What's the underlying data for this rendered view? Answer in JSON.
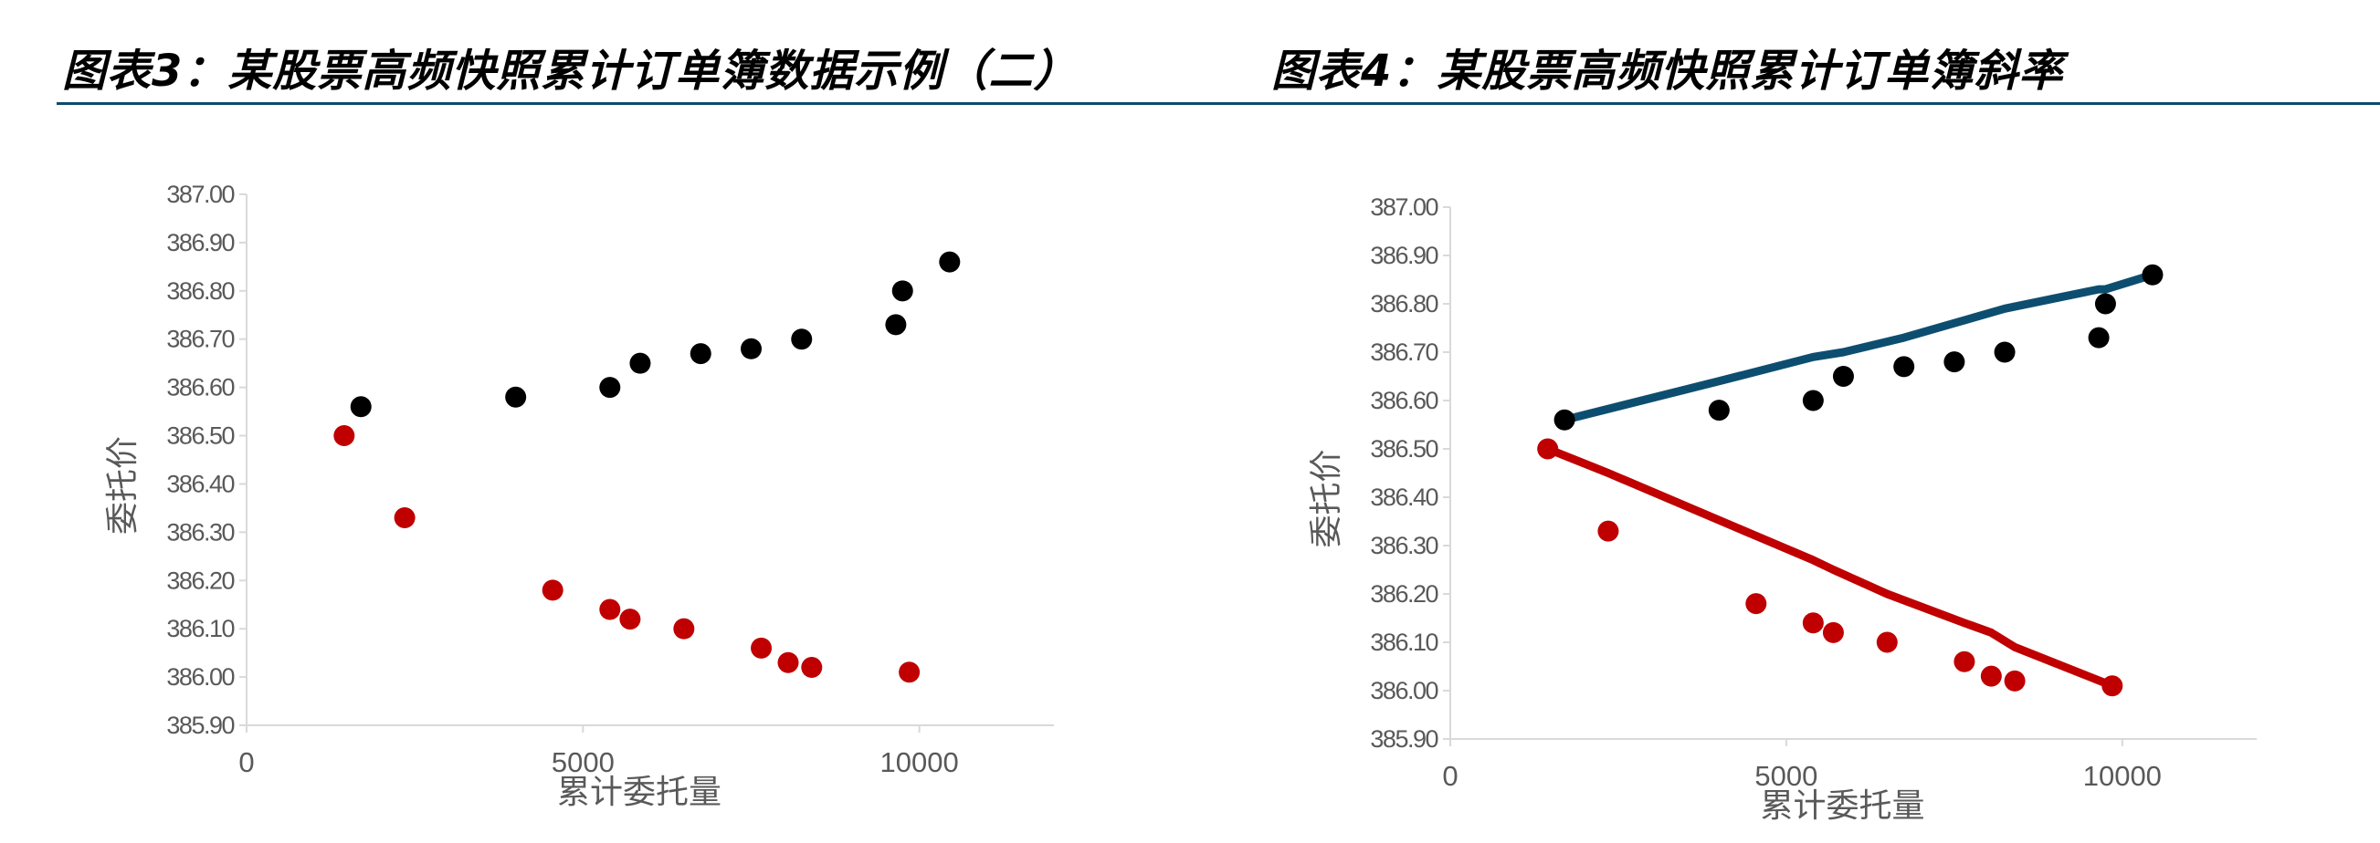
{
  "figures": [
    {
      "title": "图表3：某股票高频快照累计订单簿数据示例（二）",
      "chart_data": {
        "type": "scatter",
        "xlabel": "累计委托量",
        "ylabel": "委托价",
        "xlim": [
          0,
          12000
        ],
        "ylim": [
          385.9,
          387.0
        ],
        "xticks": [
          "0",
          "5000",
          "10000"
        ],
        "yticks": [
          "385.90",
          "386.00",
          "386.10",
          "386.20",
          "386.30",
          "386.40",
          "386.50",
          "386.60",
          "386.70",
          "386.80",
          "386.90",
          "387.00"
        ],
        "series": [
          {
            "color": "#000000",
            "points": [
              [
                1700,
                386.56
              ],
              [
                4000,
                386.58
              ],
              [
                5400,
                386.6
              ],
              [
                5850,
                386.65
              ],
              [
                6750,
                386.67
              ],
              [
                7500,
                386.68
              ],
              [
                8250,
                386.7
              ],
              [
                9650,
                386.73
              ],
              [
                9750,
                386.8
              ],
              [
                10450,
                386.86
              ]
            ]
          },
          {
            "color": "#c00000",
            "points": [
              [
                1450,
                386.5
              ],
              [
                2350,
                386.33
              ],
              [
                4550,
                386.18
              ],
              [
                5400,
                386.14
              ],
              [
                5700,
                386.12
              ],
              [
                6500,
                386.1
              ],
              [
                7650,
                386.06
              ],
              [
                8050,
                386.03
              ],
              [
                8400,
                386.02
              ],
              [
                9850,
                386.01
              ]
            ]
          }
        ]
      }
    },
    {
      "title": "图表4：某股票高频快照累计订单簿斜率",
      "chart_data": {
        "type": "scatter",
        "xlabel": "累计委托量",
        "ylabel": "委托价",
        "xlim": [
          0,
          12000
        ],
        "ylim": [
          385.9,
          387.0
        ],
        "xticks": [
          "0",
          "5000",
          "10000"
        ],
        "yticks": [
          "385.90",
          "386.00",
          "386.10",
          "386.20",
          "386.30",
          "386.40",
          "386.50",
          "386.60",
          "386.70",
          "386.80",
          "386.90",
          "387.00"
        ],
        "series": [
          {
            "color": "#000000",
            "points": [
              [
                1700,
                386.56
              ],
              [
                4000,
                386.58
              ],
              [
                5400,
                386.6
              ],
              [
                5850,
                386.65
              ],
              [
                6750,
                386.67
              ],
              [
                7500,
                386.68
              ],
              [
                8250,
                386.7
              ],
              [
                9650,
                386.73
              ],
              [
                9750,
                386.8
              ],
              [
                10450,
                386.86
              ]
            ]
          },
          {
            "color": "#c00000",
            "points": [
              [
                1450,
                386.5
              ],
              [
                2350,
                386.33
              ],
              [
                4550,
                386.18
              ],
              [
                5400,
                386.14
              ],
              [
                5700,
                386.12
              ],
              [
                6500,
                386.1
              ],
              [
                7650,
                386.06
              ],
              [
                8050,
                386.03
              ],
              [
                8400,
                386.02
              ],
              [
                9850,
                386.01
              ]
            ]
          }
        ],
        "lines": [
          {
            "color": "#0d4e70",
            "points": [
              [
                1700,
                386.56
              ],
              [
                4000,
                386.64
              ],
              [
                5400,
                386.69
              ],
              [
                5850,
                386.7
              ],
              [
                6750,
                386.73
              ],
              [
                7500,
                386.76
              ],
              [
                8250,
                386.79
              ],
              [
                9650,
                386.83
              ],
              [
                9750,
                386.83
              ],
              [
                10450,
                386.86
              ]
            ]
          },
          {
            "color": "#c00000",
            "points": [
              [
                1450,
                386.5
              ],
              [
                2350,
                386.45
              ],
              [
                4550,
                386.32
              ],
              [
                5400,
                386.27
              ],
              [
                5700,
                386.25
              ],
              [
                6500,
                386.2
              ],
              [
                7650,
                386.14
              ],
              [
                8050,
                386.12
              ],
              [
                8400,
                386.09
              ],
              [
                9850,
                386.01
              ]
            ]
          }
        ]
      }
    }
  ]
}
